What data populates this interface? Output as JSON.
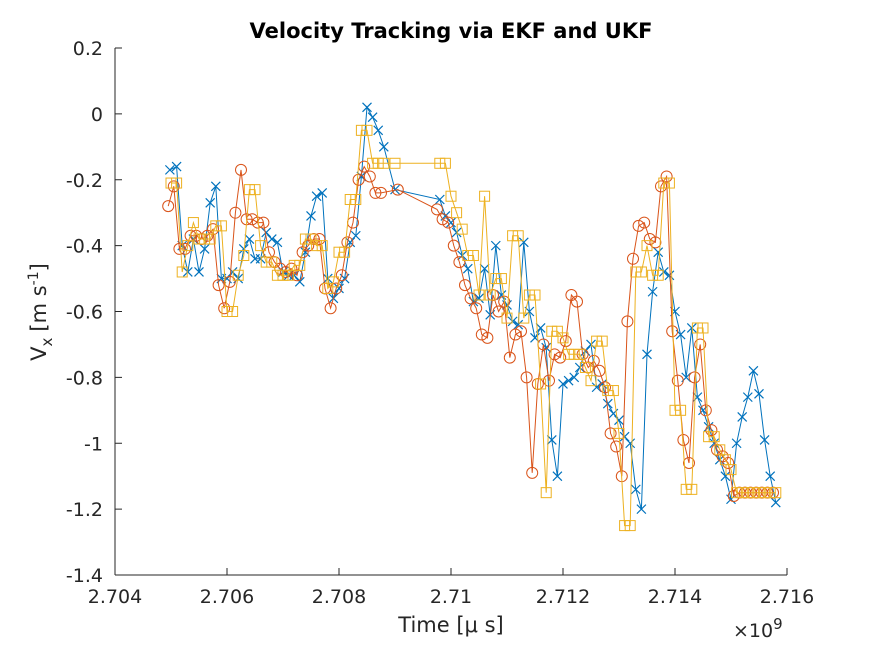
{
  "chart_data": {
    "type": "line",
    "title": "Velocity Tracking via EKF and UKF",
    "xlabel": "Time [μ s]",
    "ylabel": "V",
    "ylabel_subscript": "x",
    "ylabel_units": "[m s",
    "ylabel_units_sup": "-1",
    "ylabel_units_close": "]",
    "x_exponent_label": "×10",
    "x_exponent": "9",
    "xlim": [
      2.704,
      2.716
    ],
    "ylim": [
      -1.4,
      0.2
    ],
    "x_ticks": [
      2.704,
      2.706,
      2.708,
      2.71,
      2.712,
      2.714,
      2.716
    ],
    "x_tick_labels": [
      "2.704",
      "2.706",
      "2.708",
      "2.71",
      "2.712",
      "2.714",
      "2.716"
    ],
    "y_ticks": [
      -1.4,
      -1.2,
      -1,
      -0.8,
      -0.6,
      -0.4,
      -0.2,
      0,
      0.2
    ],
    "y_tick_labels": [
      "-1.4",
      "-1.2",
      "-1",
      "-0.8",
      "-0.6",
      "-0.4",
      "-0.2",
      "0",
      "0.2"
    ],
    "grid": false,
    "series": [
      {
        "color": "#0072BD",
        "marker": "x",
        "x": [
          2.70498,
          2.7051,
          2.7052,
          2.7053,
          2.7054,
          2.7055,
          2.7056,
          2.7057,
          2.7058,
          2.7059,
          2.706,
          2.7061,
          2.7062,
          2.7063,
          2.7064,
          2.7065,
          2.7066,
          2.7067,
          2.7068,
          2.7069,
          2.707,
          2.7071,
          2.7072,
          2.7073,
          2.7074,
          2.7075,
          2.7076,
          2.7077,
          2.7078,
          2.7079,
          2.708,
          2.7081,
          2.7082,
          2.7083,
          2.7084,
          2.7085,
          2.7086,
          2.7087,
          2.7088,
          2.709,
          2.7098,
          2.7099,
          2.71,
          2.7101,
          2.7102,
          2.7103,
          2.7104,
          2.7105,
          2.7106,
          2.7107,
          2.7108,
          2.7109,
          2.711,
          2.7111,
          2.7112,
          2.7113,
          2.7114,
          2.7115,
          2.7116,
          2.7117,
          2.7118,
          2.7119,
          2.712,
          2.7121,
          2.7122,
          2.7123,
          2.7124,
          2.7125,
          2.7126,
          2.7127,
          2.7128,
          2.7129,
          2.713,
          2.7131,
          2.7132,
          2.7133,
          2.7134,
          2.7135,
          2.7136,
          2.7137,
          2.7138,
          2.7139,
          2.714,
          2.7141,
          2.7142,
          2.7143,
          2.7144,
          2.7145,
          2.7146,
          2.7147,
          2.7148,
          2.7149,
          2.715,
          2.7151,
          2.7152,
          2.7153,
          2.7154,
          2.7155,
          2.7156,
          2.7157,
          2.7158
        ],
        "y": [
          -0.17,
          -0.16,
          -0.4,
          -0.48,
          -0.38,
          -0.48,
          -0.41,
          -0.27,
          -0.22,
          -0.5,
          -0.5,
          -0.48,
          -0.5,
          -0.41,
          -0.38,
          -0.44,
          -0.44,
          -0.36,
          -0.38,
          -0.39,
          -0.48,
          -0.49,
          -0.49,
          -0.51,
          -0.42,
          -0.31,
          -0.25,
          -0.24,
          -0.5,
          -0.56,
          -0.53,
          -0.5,
          -0.39,
          -0.37,
          -0.19,
          0.02,
          -0.01,
          -0.05,
          -0.1,
          -0.23,
          -0.26,
          -0.31,
          -0.33,
          -0.36,
          -0.43,
          -0.47,
          -0.57,
          -0.56,
          -0.47,
          -0.61,
          -0.4,
          -0.55,
          -0.58,
          -0.63,
          -0.64,
          -0.39,
          -0.6,
          -0.68,
          -0.65,
          -0.71,
          -0.99,
          -1.1,
          -0.82,
          -0.81,
          -0.8,
          -0.77,
          -0.72,
          -0.7,
          -0.83,
          -0.82,
          -0.88,
          -0.91,
          -0.93,
          -0.98,
          -1.0,
          -1.14,
          -1.2,
          -0.73,
          -0.54,
          -0.42,
          -0.48,
          -0.49,
          -0.6,
          -0.67,
          -0.8,
          -0.65,
          -0.86,
          -0.9,
          -0.95,
          -1.0,
          -1.05,
          -1.1,
          -1.17,
          -1.0,
          -0.92,
          -0.86,
          -0.78,
          -0.85,
          -0.99,
          -1.1,
          -1.18
        ]
      },
      {
        "color": "#D95319",
        "marker": "o",
        "x": [
          2.70495,
          2.70505,
          2.70515,
          2.70525,
          2.70535,
          2.70545,
          2.70555,
          2.70565,
          2.70575,
          2.70585,
          2.70595,
          2.70605,
          2.70615,
          2.70625,
          2.70635,
          2.70645,
          2.70655,
          2.70665,
          2.70675,
          2.70685,
          2.70695,
          2.70705,
          2.70715,
          2.70725,
          2.70735,
          2.70745,
          2.70755,
          2.70765,
          2.70775,
          2.70785,
          2.70795,
          2.70805,
          2.70815,
          2.70825,
          2.70835,
          2.70845,
          2.70855,
          2.70865,
          2.70875,
          2.70905,
          2.70975,
          2.70985,
          2.70995,
          2.71005,
          2.71015,
          2.71025,
          2.71035,
          2.71045,
          2.71055,
          2.71065,
          2.71075,
          2.71085,
          2.71095,
          2.71105,
          2.71115,
          2.71125,
          2.71135,
          2.71145,
          2.71155,
          2.71165,
          2.71175,
          2.71185,
          2.71195,
          2.71205,
          2.71215,
          2.71225,
          2.71235,
          2.71245,
          2.71255,
          2.71265,
          2.71275,
          2.71285,
          2.71295,
          2.71305,
          2.71315,
          2.71325,
          2.71335,
          2.71345,
          2.71355,
          2.71365,
          2.71375,
          2.71385,
          2.71395,
          2.71405,
          2.71415,
          2.71425,
          2.71435,
          2.71445,
          2.71455,
          2.71465,
          2.71475,
          2.71485,
          2.71495,
          2.71505,
          2.71515,
          2.71525,
          2.71535,
          2.71545,
          2.71555,
          2.71565,
          2.71575
        ],
        "y": [
          -0.28,
          -0.22,
          -0.41,
          -0.41,
          -0.37,
          -0.37,
          -0.38,
          -0.37,
          -0.35,
          -0.52,
          -0.59,
          -0.51,
          -0.3,
          -0.17,
          -0.32,
          -0.32,
          -0.33,
          -0.33,
          -0.42,
          -0.45,
          -0.47,
          -0.48,
          -0.47,
          -0.49,
          -0.42,
          -0.4,
          -0.38,
          -0.38,
          -0.53,
          -0.59,
          -0.53,
          -0.49,
          -0.39,
          -0.33,
          -0.2,
          -0.16,
          -0.19,
          -0.24,
          -0.24,
          -0.23,
          -0.29,
          -0.32,
          -0.33,
          -0.4,
          -0.45,
          -0.52,
          -0.56,
          -0.59,
          -0.67,
          -0.68,
          -0.55,
          -0.6,
          -0.57,
          -0.74,
          -0.67,
          -0.66,
          -0.8,
          -1.09,
          -0.82,
          -0.7,
          -0.81,
          -0.73,
          -0.74,
          -0.69,
          -0.55,
          -0.57,
          -0.73,
          -0.77,
          -0.75,
          -0.78,
          -0.83,
          -0.97,
          -1.01,
          -1.1,
          -0.63,
          -0.44,
          -0.34,
          -0.33,
          -0.38,
          -0.39,
          -0.22,
          -0.19,
          -0.66,
          -0.81,
          -0.99,
          -1.06,
          -0.8,
          -0.7,
          -0.9,
          -0.96,
          -1.02,
          -1.04,
          -1.06,
          -1.16,
          -1.15,
          -1.15,
          -1.15,
          -1.15,
          -1.15,
          -1.15,
          -1.15
        ]
      },
      {
        "color": "#EDB120",
        "marker": "s",
        "x": [
          2.705,
          2.7051,
          2.7052,
          2.7053,
          2.7054,
          2.7055,
          2.7056,
          2.7057,
          2.7058,
          2.7059,
          2.706,
          2.7061,
          2.7062,
          2.7063,
          2.7064,
          2.7065,
          2.7066,
          2.7067,
          2.7068,
          2.7069,
          2.707,
          2.7071,
          2.7072,
          2.7073,
          2.7074,
          2.7075,
          2.7076,
          2.7077,
          2.7078,
          2.7079,
          2.708,
          2.7081,
          2.7082,
          2.7083,
          2.7084,
          2.7085,
          2.7086,
          2.7087,
          2.7088,
          2.709,
          2.7098,
          2.7099,
          2.71,
          2.7101,
          2.7102,
          2.7103,
          2.7104,
          2.7105,
          2.7106,
          2.7107,
          2.7108,
          2.7109,
          2.711,
          2.7111,
          2.7112,
          2.7113,
          2.7114,
          2.7115,
          2.7116,
          2.7117,
          2.7118,
          2.7119,
          2.712,
          2.7121,
          2.7122,
          2.7123,
          2.7124,
          2.7125,
          2.7126,
          2.7127,
          2.7128,
          2.7129,
          2.713,
          2.7131,
          2.7132,
          2.7133,
          2.7134,
          2.7135,
          2.7136,
          2.7137,
          2.7138,
          2.7139,
          2.714,
          2.7141,
          2.7142,
          2.7143,
          2.7144,
          2.7145,
          2.7146,
          2.7147,
          2.7148,
          2.7149,
          2.715,
          2.7151,
          2.7152,
          2.7153,
          2.7154,
          2.7155,
          2.7156,
          2.7157,
          2.7158
        ],
        "y": [
          -0.21,
          -0.21,
          -0.48,
          -0.4,
          -0.33,
          -0.38,
          -0.38,
          -0.38,
          -0.34,
          -0.34,
          -0.6,
          -0.6,
          -0.49,
          -0.43,
          -0.23,
          -0.23,
          -0.4,
          -0.45,
          -0.45,
          -0.49,
          -0.49,
          -0.49,
          -0.46,
          -0.46,
          -0.38,
          -0.38,
          -0.4,
          -0.4,
          -0.53,
          -0.51,
          -0.42,
          -0.42,
          -0.26,
          -0.26,
          -0.05,
          -0.05,
          -0.15,
          -0.15,
          -0.15,
          -0.15,
          -0.15,
          -0.15,
          -0.25,
          -0.3,
          -0.35,
          -0.43,
          -0.43,
          -0.55,
          -0.25,
          -0.55,
          -0.5,
          -0.5,
          -0.62,
          -0.37,
          -0.37,
          -0.62,
          -0.55,
          -0.55,
          -0.82,
          -1.15,
          -0.66,
          -0.66,
          -0.68,
          -0.73,
          -0.73,
          -0.73,
          -0.77,
          -0.81,
          -0.69,
          -0.69,
          -0.84,
          -0.84,
          -0.97,
          -1.25,
          -1.25,
          -0.48,
          -0.48,
          -0.4,
          -0.49,
          -0.49,
          -0.21,
          -0.21,
          -0.9,
          -0.9,
          -1.14,
          -1.14,
          -0.65,
          -0.65,
          -0.98,
          -0.98,
          -1.02,
          -1.05,
          -1.08,
          -1.15,
          -1.15,
          -1.15,
          -1.15,
          -1.15,
          -1.15,
          -1.15,
          -1.15
        ]
      }
    ]
  }
}
